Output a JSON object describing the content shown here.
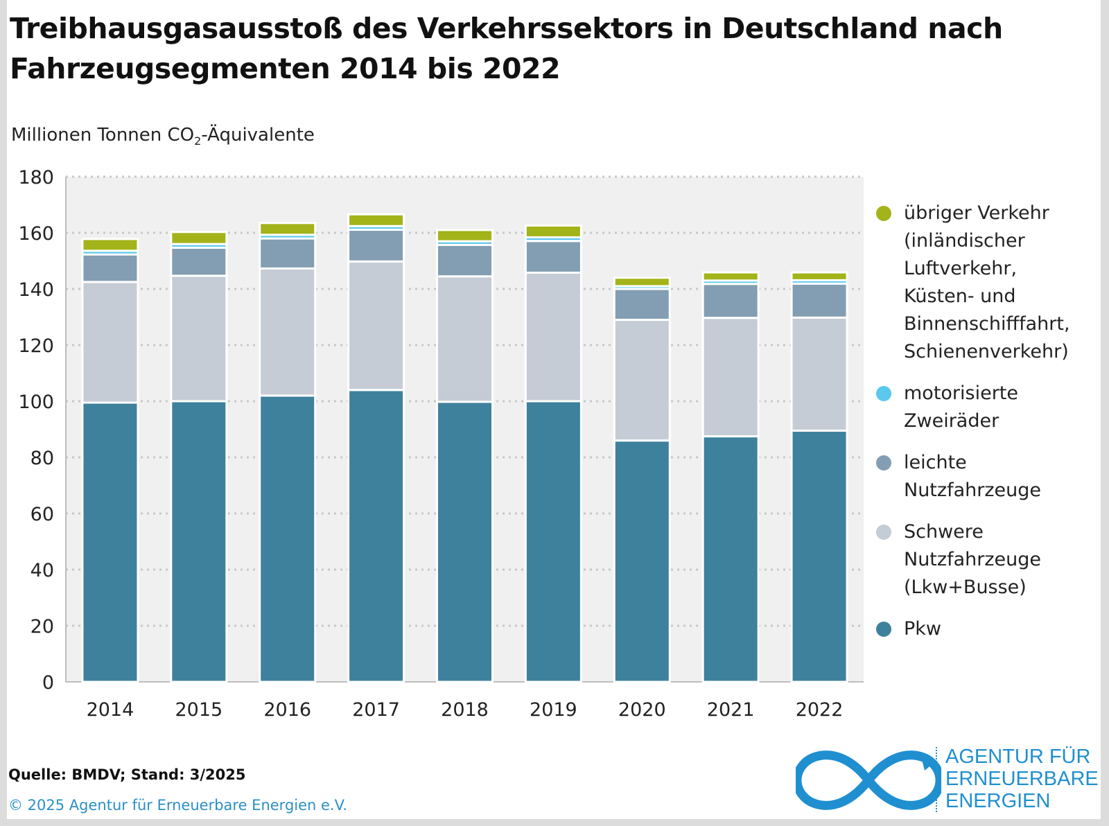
{
  "title": "Treibhausgasausstoß des Verkehrssektors in Deutschland nach Fahrzeugsegmenten 2014 bis 2022",
  "unit_label": {
    "before": "Millionen Tonnen CO",
    "sub": "2",
    "after": "-Äquivalente"
  },
  "source": "Quelle: BMDV; Stand: 3/2025",
  "copyright": "© 2025 Agentur für Erneuerbare Energien e.V.",
  "logo": {
    "line1": "AGENTUR FÜR",
    "line2": "ERNEUERBARE",
    "line3": "ENERGIEN"
  },
  "colors": {
    "pkw": "#3e819d",
    "schwere": "#c5ccd6",
    "leichte": "#839eb2",
    "zweiraeder": "#5bc8ee",
    "uebriger": "#a3b31a",
    "plot_bg": "#f0f0f0",
    "logo": "#1f8fd0"
  },
  "chart_data": {
    "type": "bar",
    "stacked": true,
    "categories": [
      "2014",
      "2015",
      "2016",
      "2017",
      "2018",
      "2019",
      "2020",
      "2021",
      "2022"
    ],
    "series": [
      {
        "name": "Pkw",
        "color": "#3e819d",
        "values": [
          99.5,
          100.0,
          102.0,
          104.0,
          99.8,
          100.0,
          86.0,
          87.5,
          89.5
        ]
      },
      {
        "name": "Schwere Nutzfahrzeuge (Lkw+Busse)",
        "color": "#c5ccd6",
        "values": [
          43.0,
          44.7,
          45.3,
          45.8,
          44.7,
          45.8,
          43.0,
          42.2,
          40.3
        ]
      },
      {
        "name": "leichte Nutzfahrzeuge",
        "color": "#839eb2",
        "values": [
          9.8,
          10.0,
          10.7,
          11.3,
          11.2,
          11.3,
          11.0,
          12.1,
          12.1
        ]
      },
      {
        "name": "motorisierte Zweiräder",
        "color": "#5bc8ee",
        "values": [
          1.3,
          1.3,
          1.3,
          1.3,
          1.3,
          1.3,
          1.0,
          1.2,
          1.2
        ]
      },
      {
        "name": "übriger Verkehr (inländischer Luftverkehr, Küsten- und Binnenschifffahrt, Schienenverkehr)",
        "color": "#a3b31a",
        "values": [
          4.2,
          4.3,
          4.2,
          4.2,
          4.0,
          4.2,
          3.0,
          2.9,
          2.8
        ]
      }
    ],
    "ylim": [
      0,
      180
    ],
    "yticks": [
      "0",
      "20",
      "40",
      "60",
      "80",
      "100",
      "120",
      "140",
      "160",
      "180"
    ],
    "grid": true,
    "legend_position": "right"
  },
  "legend": [
    {
      "label": "übriger Verkehr (inländischer Luftverkehr, Küsten- und Binnenschifffahrt, Schienenverkehr)",
      "color": "#a3b31a"
    },
    {
      "label": "motorisierte Zweiräder",
      "color": "#5bc8ee"
    },
    {
      "label": "leichte Nutzfahrzeuge",
      "color": "#839eb2"
    },
    {
      "label": "Schwere Nutzfahrzeuge (Lkw+Busse)",
      "color": "#c5ccd6"
    },
    {
      "label": "Pkw",
      "color": "#3e819d"
    }
  ]
}
